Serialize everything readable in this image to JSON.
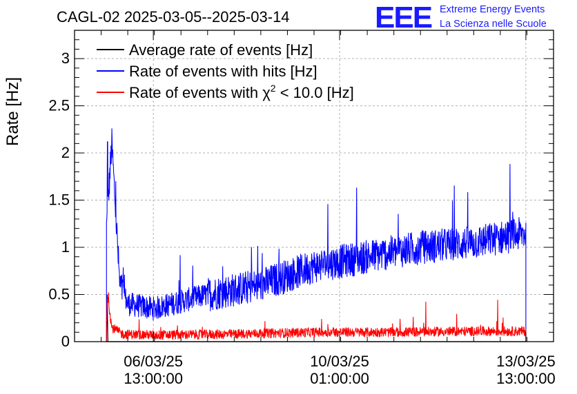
{
  "header": {
    "title": "CAGL-02 2025-03-05--2025-03-14",
    "logo_text": "EEE",
    "logo_line1": "Extreme Energy Events",
    "logo_line2": "La Scienza nelle Scuole",
    "logo_color": "#1a1aff"
  },
  "chart_data": {
    "type": "line",
    "title": "CAGL-02 2025-03-05--2025-03-14",
    "xlabel": "",
    "ylabel": "Rate [Hz]",
    "ylim": [
      0,
      3.3
    ],
    "yticks": [
      "0",
      "0.5",
      "1",
      "1.5",
      "2",
      "2.5",
      "3"
    ],
    "xlim_days": [
      0,
      9
    ],
    "xticks": [
      {
        "date": "06/03/25",
        "time": "13:00:00"
      },
      {
        "date": "10/03/25",
        "time": "01:00:00"
      },
      {
        "date": "13/03/25",
        "time": "13:00:00"
      }
    ],
    "grid": true,
    "legend_position": "top-left",
    "series": [
      {
        "name": "Average rate of events [Hz]",
        "color": "#000000",
        "description_values": "~0 Hz throughout, brief spike at data start"
      },
      {
        "name": "Rate of events with hits [Hz]",
        "color": "#0000ff",
        "x_day": [
          0.6,
          0.7,
          0.85,
          1.0,
          1.5,
          2.5,
          3.5,
          4.5,
          5.5,
          6.5,
          7.5,
          8.0,
          8.48
        ],
        "y_hz": [
          1.2,
          2.1,
          0.6,
          0.4,
          0.35,
          0.5,
          0.6,
          0.8,
          0.9,
          1.0,
          1.05,
          1.1,
          1.15
        ],
        "noise_amp_hz": 0.18,
        "peaks": [
          {
            "x_day": 0.62,
            "y_hz": 2.12
          },
          {
            "x_day": 5.3,
            "y_hz": 1.63
          },
          {
            "x_day": 8.18,
            "y_hz": 1.88
          }
        ]
      },
      {
        "name": "Rate of events with χ² < 10.0 [Hz]",
        "legend_label_prefix": "Rate of events with ",
        "legend_label_chi": "χ",
        "legend_label_sup": "2",
        "legend_label_suffix": " < 10.0 [Hz]",
        "color": "#ff0000",
        "x_day": [
          0.6,
          0.62,
          0.7,
          0.9,
          1.5,
          3.0,
          4.5,
          6.0,
          7.5,
          8.48
        ],
        "y_hz": [
          0.2,
          0.5,
          0.15,
          0.08,
          0.07,
          0.08,
          0.1,
          0.1,
          0.11,
          0.11
        ],
        "noise_amp_hz": 0.05,
        "peaks": [
          {
            "x_day": 0.64,
            "y_hz": 0.52
          },
          {
            "x_day": 7.95,
            "y_hz": 0.44
          },
          {
            "x_day": 6.6,
            "y_hz": 0.42
          }
        ]
      }
    ]
  }
}
